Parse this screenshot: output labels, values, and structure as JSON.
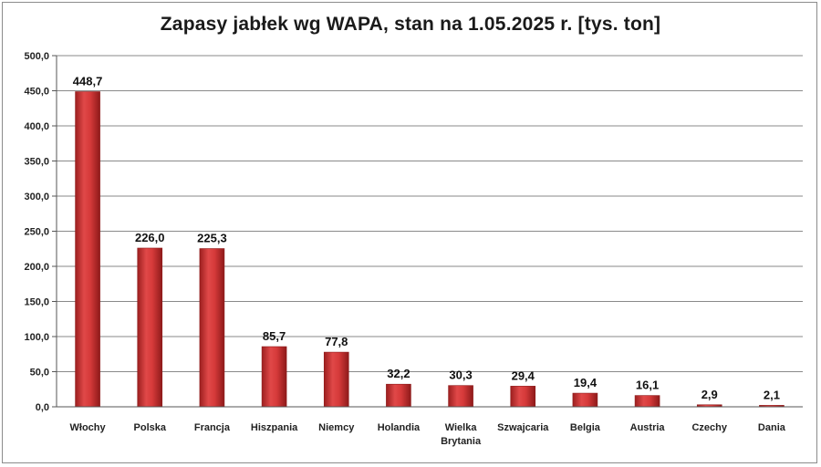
{
  "chart_data": {
    "type": "bar",
    "title": "Zapasy jabłek wg WAPA, stan na 1.05.2025 r. [tys. ton]",
    "categories": [
      [
        "Włochy"
      ],
      [
        "Polska"
      ],
      [
        "Francja"
      ],
      [
        "Hiszpania"
      ],
      [
        "Niemcy"
      ],
      [
        "Holandia"
      ],
      [
        "Wielka",
        "Brytania"
      ],
      [
        "Szwajcaria"
      ],
      [
        "Belgia"
      ],
      [
        "Austria"
      ],
      [
        "Czechy"
      ],
      [
        "Dania"
      ]
    ],
    "values": [
      448.7,
      226.0,
      225.3,
      85.7,
      77.8,
      32.2,
      30.3,
      29.4,
      19.4,
      16.1,
      2.9,
      2.1
    ],
    "value_labels": [
      "448,7",
      "226,0",
      "225,3",
      "85,7",
      "77,8",
      "32,2",
      "30,3",
      "29,4",
      "19,4",
      "16,1",
      "2,9",
      "2,1"
    ],
    "ylim": [
      0,
      500
    ],
    "yticks": [
      "0,0",
      "50,0",
      "100,0",
      "150,0",
      "200,0",
      "250,0",
      "300,0",
      "350,0",
      "400,0",
      "450,0",
      "500,0"
    ],
    "grid": true,
    "bar_color": "#d63a3a",
    "bar_color_dark": "#8e1a1a"
  }
}
